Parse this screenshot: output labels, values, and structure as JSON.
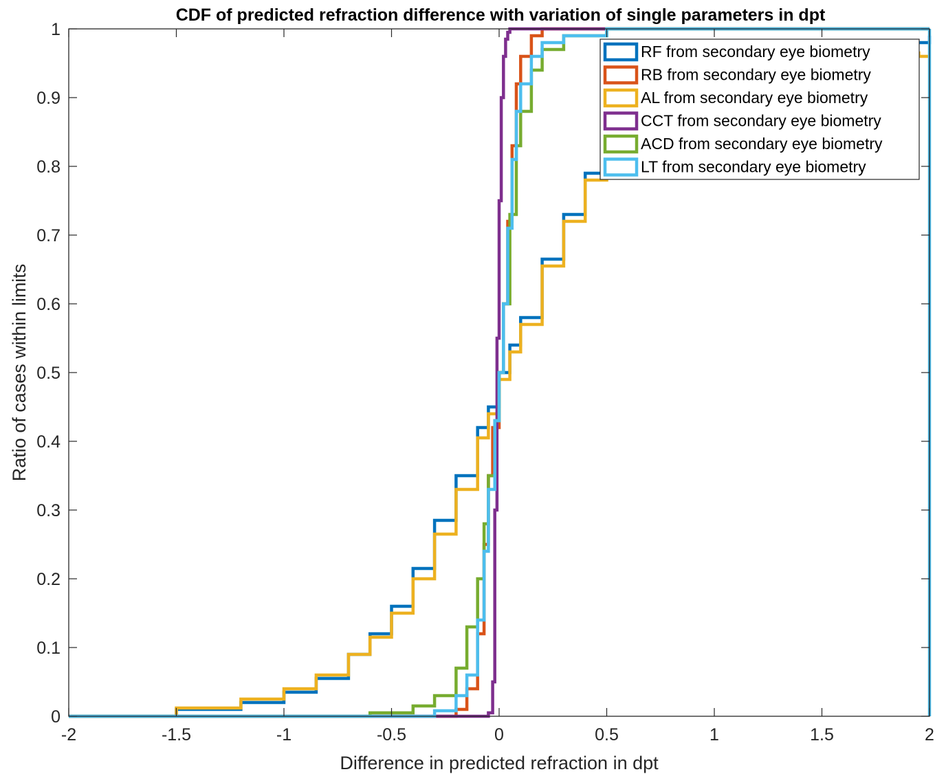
{
  "chart_data": {
    "type": "line",
    "title": "CDF of predicted refraction difference with variation of single parameters in dpt",
    "xlabel": "Difference in predicted refraction in dpt",
    "ylabel": "Ratio of cases within limits",
    "xlim": [
      -2,
      2
    ],
    "ylim": [
      0,
      1
    ],
    "xticks": [
      -2,
      -1.5,
      -1,
      -0.5,
      0,
      0.5,
      1,
      1.5,
      2
    ],
    "xtick_labels": [
      "-2",
      "-1.5",
      "-1",
      "-0.5",
      "0",
      "0.5",
      "1",
      "1.5",
      "2"
    ],
    "yticks": [
      0,
      0.1,
      0.2,
      0.3,
      0.4,
      0.5,
      0.6,
      0.7,
      0.8,
      0.9,
      1
    ],
    "ytick_labels": [
      "0",
      "0.1",
      "0.2",
      "0.3",
      "0.4",
      "0.5",
      "0.6",
      "0.7",
      "0.8",
      "0.9",
      "1"
    ],
    "grid": false,
    "legend_position": "top-right",
    "step": true,
    "series": [
      {
        "name": "RF from secondary eye biometry",
        "color": "#0072BD",
        "x": [
          -2,
          -1.5,
          -1.2,
          -1.0,
          -0.85,
          -0.7,
          -0.6,
          -0.5,
          -0.4,
          -0.3,
          -0.2,
          -0.1,
          -0.05,
          0,
          0.05,
          0.1,
          0.2,
          0.3,
          0.4,
          0.5,
          0.6,
          0.8,
          1.0,
          1.5,
          2.0
        ],
        "y": [
          0,
          0.01,
          0.02,
          0.035,
          0.055,
          0.09,
          0.12,
          0.16,
          0.215,
          0.285,
          0.35,
          0.42,
          0.45,
          0.5,
          0.54,
          0.58,
          0.665,
          0.73,
          0.79,
          0.85,
          0.895,
          0.94,
          0.965,
          0.98,
          0.99
        ]
      },
      {
        "name": "RB from secondary eye biometry",
        "color": "#D95319",
        "x": [
          -2,
          -0.4,
          -0.2,
          -0.15,
          -0.1,
          -0.07,
          -0.05,
          -0.03,
          0,
          0.02,
          0.04,
          0.06,
          0.08,
          0.1,
          0.15,
          0.2,
          0.5,
          2
        ],
        "y": [
          0,
          0.0,
          0.01,
          0.04,
          0.12,
          0.25,
          0.35,
          0.42,
          0.5,
          0.6,
          0.72,
          0.83,
          0.92,
          0.96,
          0.99,
          1.0,
          1.0,
          1.0
        ]
      },
      {
        "name": "AL from secondary eye biometry",
        "color": "#EDB120",
        "x": [
          -2,
          -1.5,
          -1.2,
          -1.0,
          -0.85,
          -0.7,
          -0.6,
          -0.5,
          -0.4,
          -0.3,
          -0.2,
          -0.1,
          -0.05,
          0,
          0.05,
          0.1,
          0.2,
          0.3,
          0.4,
          0.5,
          0.6,
          0.8,
          1.0,
          1.5,
          1.95,
          2.0
        ],
        "y": [
          0,
          0.012,
          0.025,
          0.04,
          0.06,
          0.09,
          0.115,
          0.15,
          0.2,
          0.265,
          0.33,
          0.405,
          0.44,
          0.49,
          0.53,
          0.57,
          0.655,
          0.72,
          0.78,
          0.83,
          0.875,
          0.925,
          0.95,
          0.965,
          0.96,
          0.96
        ]
      },
      {
        "name": "CCT from secondary eye biometry",
        "color": "#7E2F8E",
        "x": [
          -2,
          -0.1,
          -0.05,
          -0.03,
          -0.02,
          -0.01,
          0,
          0.01,
          0.02,
          0.03,
          0.04,
          0.05,
          0.1,
          2
        ],
        "y": [
          0,
          0.0,
          0.005,
          0.05,
          0.3,
          0.55,
          0.75,
          0.9,
          0.96,
          0.985,
          0.995,
          1.0,
          1.0,
          1.0
        ]
      },
      {
        "name": "ACD from secondary eye biometry",
        "color": "#77AC30",
        "x": [
          -2,
          -0.6,
          -0.4,
          -0.3,
          -0.2,
          -0.15,
          -0.1,
          -0.07,
          -0.05,
          -0.02,
          0,
          0.02,
          0.05,
          0.08,
          0.1,
          0.15,
          0.2,
          0.3,
          0.5,
          2
        ],
        "y": [
          0,
          0.005,
          0.015,
          0.03,
          0.07,
          0.13,
          0.2,
          0.28,
          0.35,
          0.43,
          0.5,
          0.6,
          0.73,
          0.83,
          0.88,
          0.94,
          0.97,
          0.99,
          1.0,
          1.0
        ]
      },
      {
        "name": "LT from secondary eye biometry",
        "color": "#4DBEEE",
        "x": [
          -2,
          -0.5,
          -0.3,
          -0.2,
          -0.15,
          -0.1,
          -0.07,
          -0.05,
          -0.02,
          0,
          0.02,
          0.04,
          0.06,
          0.08,
          0.1,
          0.15,
          0.2,
          0.3,
          0.5,
          2
        ],
        "y": [
          0,
          0.0,
          0.008,
          0.03,
          0.06,
          0.14,
          0.24,
          0.33,
          0.43,
          0.5,
          0.6,
          0.71,
          0.81,
          0.88,
          0.92,
          0.96,
          0.98,
          0.99,
          1.0,
          1.0
        ]
      }
    ]
  }
}
